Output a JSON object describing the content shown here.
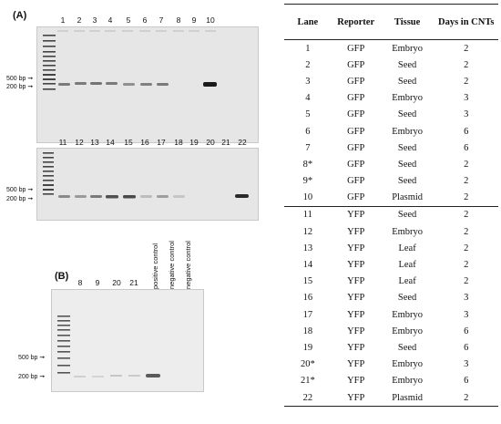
{
  "panelA": {
    "label": "(A)",
    "row1_lanes": [
      "1",
      "2",
      "3",
      "4",
      "5",
      "6",
      "7",
      "8",
      "9",
      "10"
    ],
    "row2_lanes": [
      "11",
      "12",
      "13",
      "14",
      "15",
      "16",
      "17",
      "18",
      "19",
      "20",
      "21",
      "22"
    ],
    "bp_500": "500 bp",
    "bp_200": "200 bp"
  },
  "panelB": {
    "label": "(B)",
    "lanes": [
      "8",
      "9",
      "20",
      "21"
    ],
    "controls": [
      "positive control",
      "negative control",
      "negative control"
    ],
    "bp_500": "500 bp",
    "bp_200": "200 bp"
  },
  "table": {
    "headers": {
      "lane": "Lane",
      "reporter": "Reporter",
      "tissue": "Tissue",
      "days": "Days in CNTs"
    },
    "rows": [
      {
        "lane": "1",
        "reporter": "GFP",
        "tissue": "Embryo",
        "days": "2"
      },
      {
        "lane": "2",
        "reporter": "GFP",
        "tissue": "Seed",
        "days": "2"
      },
      {
        "lane": "3",
        "reporter": "GFP",
        "tissue": "Seed",
        "days": "2"
      },
      {
        "lane": "4",
        "reporter": "GFP",
        "tissue": "Embryo",
        "days": "3"
      },
      {
        "lane": "5",
        "reporter": "GFP",
        "tissue": "Seed",
        "days": "3"
      },
      {
        "lane": "6",
        "reporter": "GFP",
        "tissue": "Embryo",
        "days": "6"
      },
      {
        "lane": "7",
        "reporter": "GFP",
        "tissue": "Seed",
        "days": "6"
      },
      {
        "lane": "8*",
        "reporter": "GFP",
        "tissue": "Seed",
        "days": "2"
      },
      {
        "lane": "9*",
        "reporter": "GFP",
        "tissue": "Seed",
        "days": "2"
      },
      {
        "lane": "10",
        "reporter": "GFP",
        "tissue": "Plasmid",
        "days": "2"
      },
      {
        "lane": "11",
        "reporter": "YFP",
        "tissue": "Seed",
        "days": "2"
      },
      {
        "lane": "12",
        "reporter": "YFP",
        "tissue": "Embryo",
        "days": "2"
      },
      {
        "lane": "13",
        "reporter": "YFP",
        "tissue": "Leaf",
        "days": "2"
      },
      {
        "lane": "14",
        "reporter": "YFP",
        "tissue": "Leaf",
        "days": "2"
      },
      {
        "lane": "15",
        "reporter": "YFP",
        "tissue": "Leaf",
        "days": "2"
      },
      {
        "lane": "16",
        "reporter": "YFP",
        "tissue": "Seed",
        "days": "3"
      },
      {
        "lane": "17",
        "reporter": "YFP",
        "tissue": "Embryo",
        "days": "3"
      },
      {
        "lane": "18",
        "reporter": "YFP",
        "tissue": "Embryo",
        "days": "6"
      },
      {
        "lane": "19",
        "reporter": "YFP",
        "tissue": "Seed",
        "days": "6"
      },
      {
        "lane": "20*",
        "reporter": "YFP",
        "tissue": "Embryo",
        "days": "3"
      },
      {
        "lane": "21*",
        "reporter": "YFP",
        "tissue": "Embryo",
        "days": "6"
      },
      {
        "lane": "22",
        "reporter": "YFP",
        "tissue": "Plasmid",
        "days": "2"
      }
    ]
  }
}
